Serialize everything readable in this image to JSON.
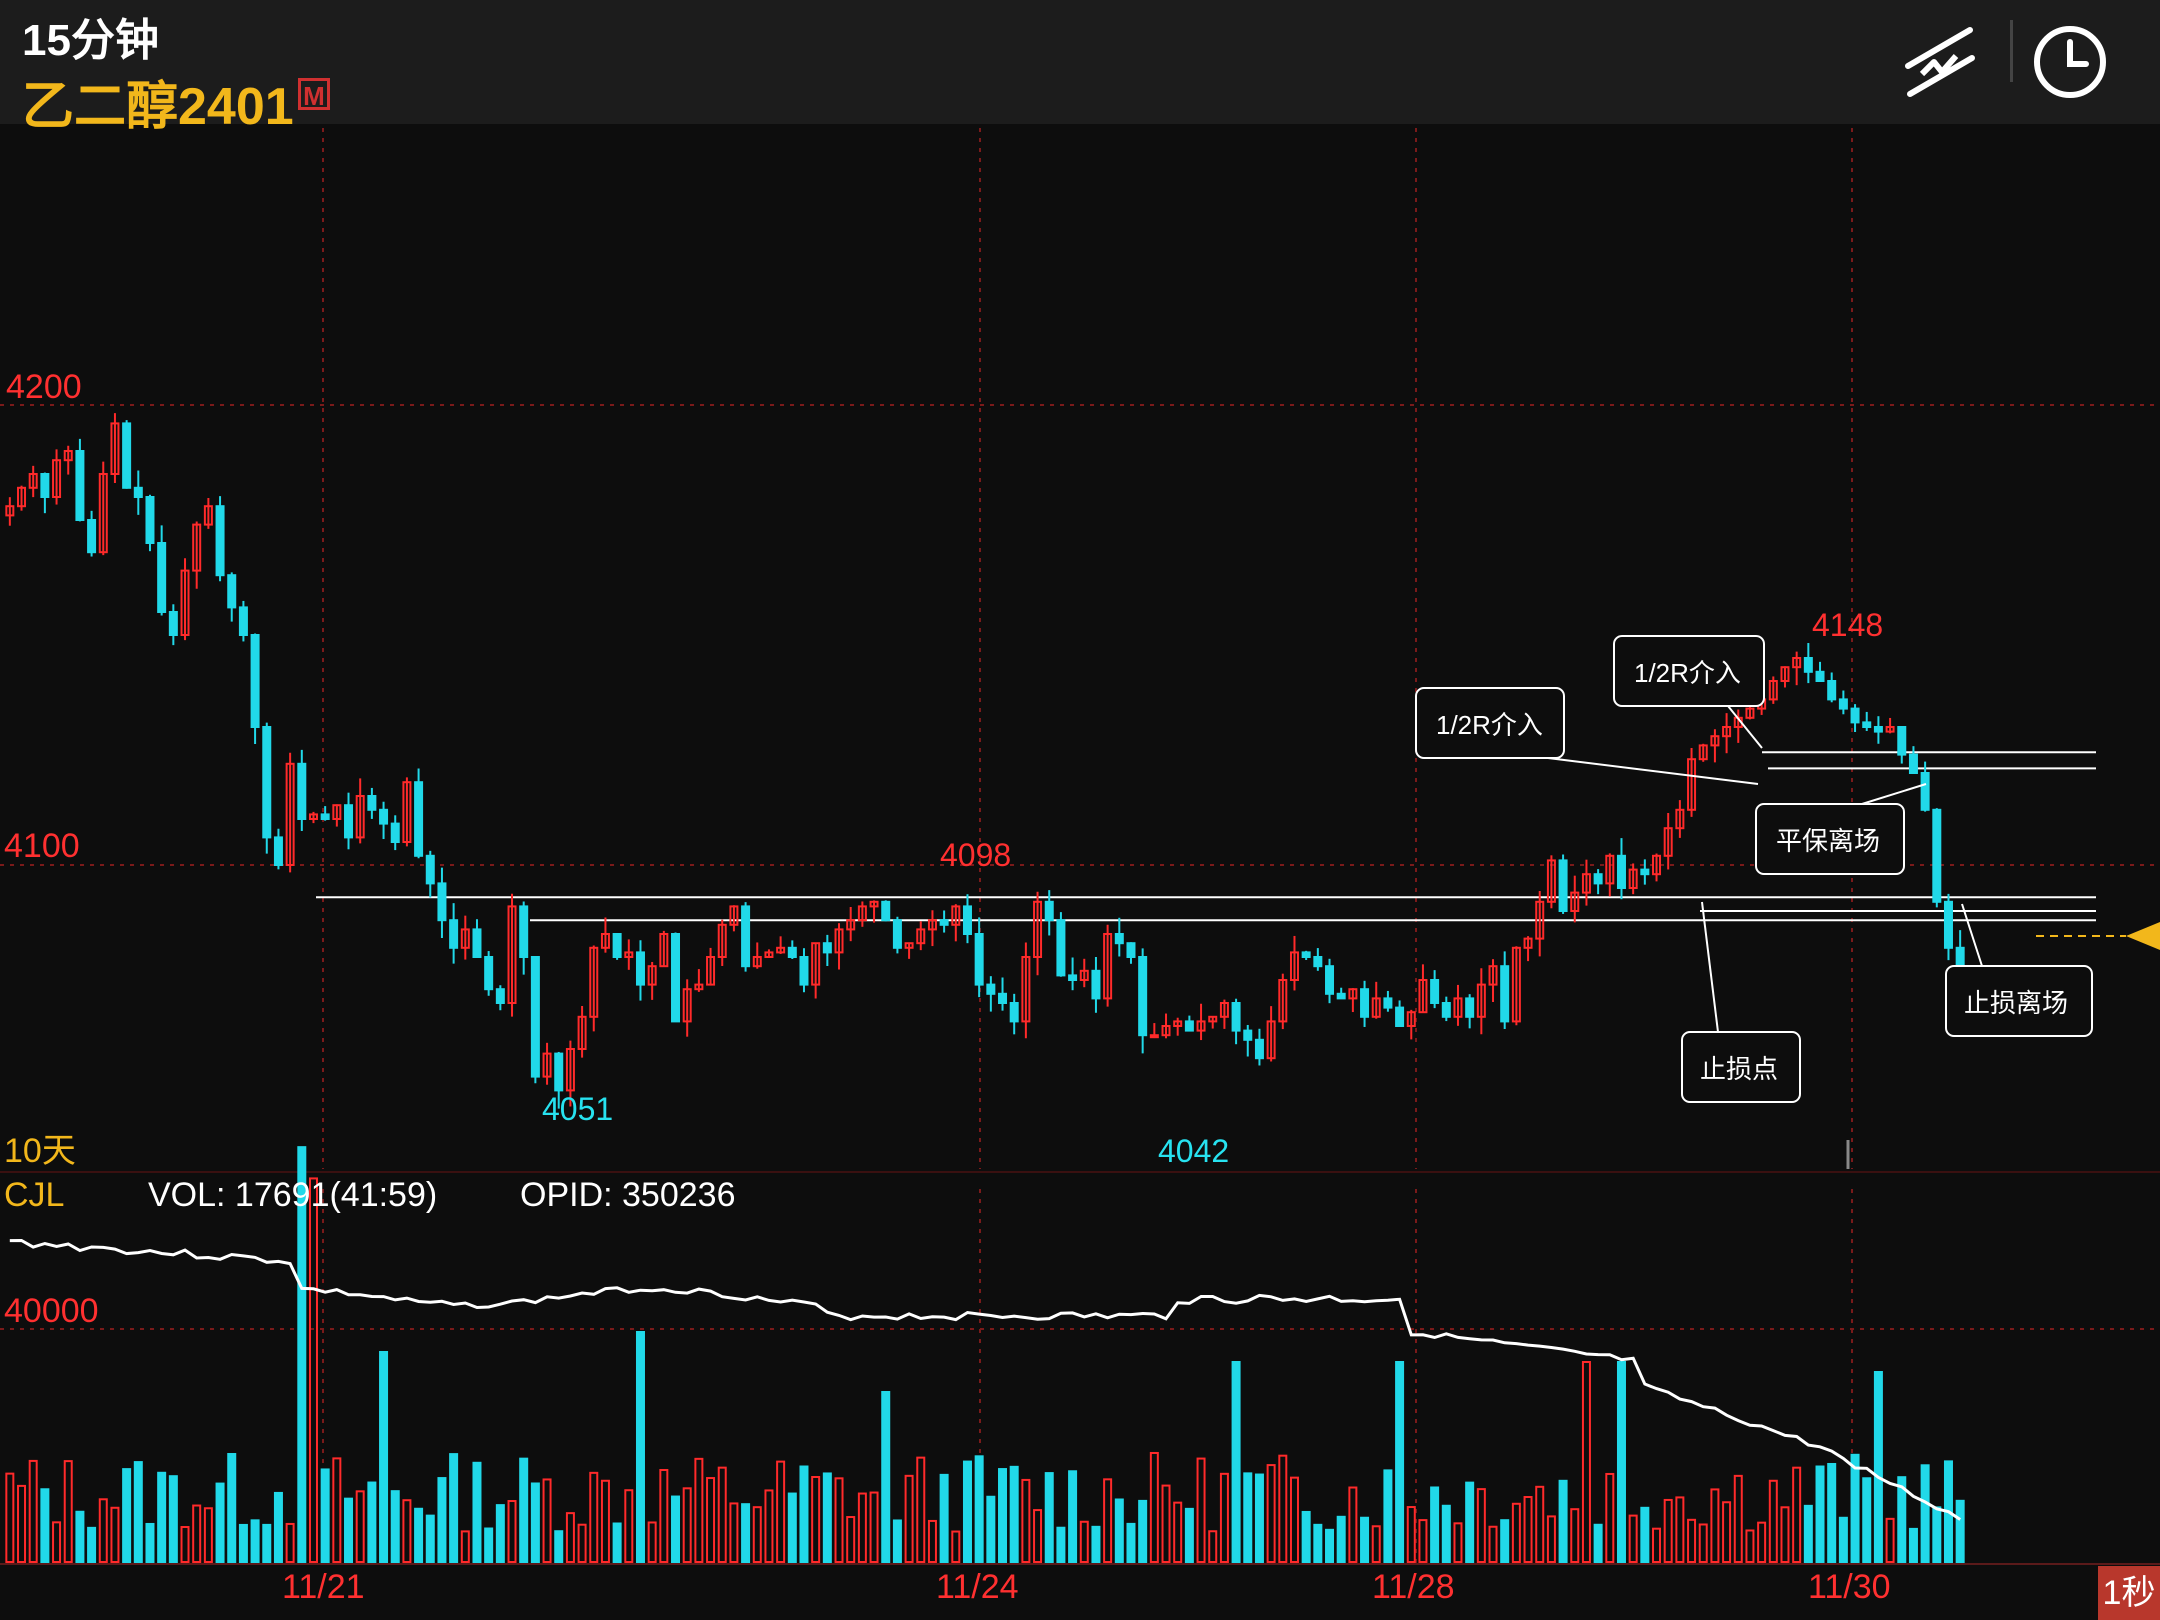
{
  "header": {
    "period": "15分钟",
    "symbol": "乙二醇2401",
    "badge": "M"
  },
  "icons": {
    "draw_tool": "drawing-tool-icon",
    "history": "clock-icon"
  },
  "price_panel": {
    "range_label": "10天",
    "y_ticks": [
      {
        "label": "4200",
        "value": 4200
      },
      {
        "label": "4100",
        "value": 4100
      }
    ],
    "annotations": [
      {
        "text": "4051",
        "color": "#27e2f0"
      },
      {
        "text": "4042",
        "color": "#27e2f0"
      },
      {
        "text": "4098",
        "color": "#ff3030"
      },
      {
        "text": "4148",
        "color": "#ff3030"
      }
    ],
    "callouts": [
      "1/2R介入",
      "1/2R介入",
      "平保离场",
      "止损点",
      "止损离场"
    ]
  },
  "volume_panel": {
    "indicator": "CJL",
    "vol_label": "VOL: 17691(41:59)",
    "opid_label": "OPID: 350236",
    "y_tick": "40000"
  },
  "x_axis": {
    "labels": [
      "11/21",
      "11/24",
      "11/28",
      "11/30"
    ]
  },
  "status": {
    "refresh": "1秒"
  },
  "colors": {
    "up": "#ff2a2a",
    "down": "#21d9e9",
    "price_text": "#ff3030",
    "grid": "#7a1a1a",
    "accent": "#f2b71b"
  },
  "chart_data": {
    "type": "candlestick",
    "price": {
      "closes": [
        4178,
        4182,
        4185,
        4180,
        4188,
        4190,
        4175,
        4168,
        4185,
        4196,
        4182,
        4180,
        4170,
        4155,
        4150,
        4164,
        4174,
        4178,
        4163,
        4156,
        4150,
        4130,
        4106,
        4100,
        4122,
        4110,
        4111,
        4110,
        4113,
        4106,
        4115,
        4112,
        4109,
        4105,
        4118,
        4102,
        4096,
        4088,
        4082,
        4086,
        4080,
        4073,
        4070,
        4091,
        4080,
        4054,
        4059,
        4051,
        4060,
        4067,
        4082,
        4085,
        4080,
        4081,
        4074,
        4078,
        4085,
        4066,
        4073,
        4074,
        4080,
        4087,
        4091,
        4078,
        4080,
        4081,
        4082,
        4080,
        4074,
        4083,
        4081,
        4086,
        4088,
        4091,
        4092,
        4088,
        4082,
        4083,
        4086,
        4088,
        4087,
        4091,
        4085,
        4074,
        4072,
        4070,
        4066,
        4080,
        4092,
        4088,
        4076,
        4075,
        4077,
        4071,
        4085,
        4083,
        4080,
        4063,
        4063,
        4065,
        4066,
        4064,
        4066,
        4067,
        4070,
        4064,
        4062,
        4058,
        4066,
        4075,
        4081,
        4080,
        4078,
        4072,
        4071,
        4073,
        4067,
        4071,
        4069,
        4065,
        4068,
        4075,
        4070,
        4067,
        4071,
        4067,
        4074,
        4078,
        4066,
        4082,
        4084,
        4092,
        4101,
        4090,
        4094,
        4098,
        4096,
        4102,
        4095,
        4099,
        4098,
        4102,
        4108,
        4112,
        4123,
        4126,
        4128,
        4130,
        4132,
        4134,
        4136,
        4140,
        4143,
        4145,
        4142,
        4140,
        4136,
        4134,
        4131,
        4130,
        4129,
        4130,
        4124,
        4120,
        4112,
        4092,
        4082,
        4078
      ],
      "high": 4148,
      "low": 4042,
      "marked_high_label": "4148",
      "marked_low_label": "4042"
    },
    "levels": [
      4125,
      4120,
      4095,
      4090,
      4088
    ],
    "volume": {
      "close_line_mode": "open_interest",
      "y_tick": 40000
    },
    "x_categories": [
      "11/21",
      "11/24",
      "11/28",
      "11/30"
    ]
  }
}
